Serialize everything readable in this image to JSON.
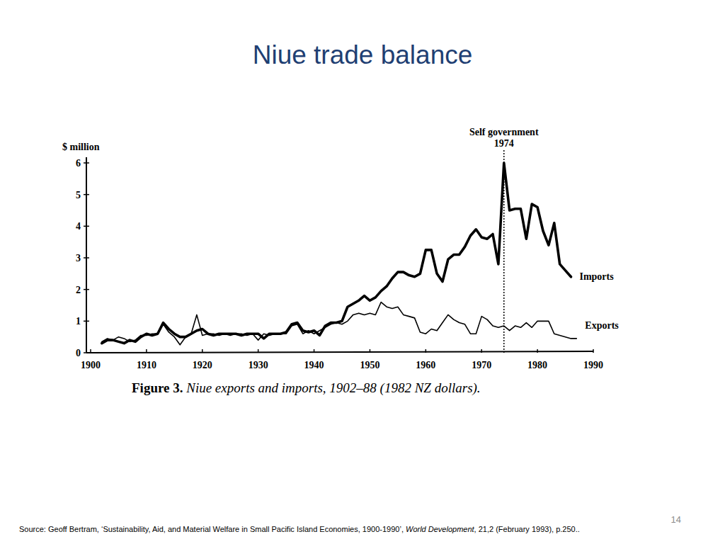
{
  "slide": {
    "title": "Niue trade balance",
    "caption_parts": [
      "Figure 3.",
      "Niue exports and imports, 1902–88 (1982 NZ dollars)."
    ],
    "source_parts": [
      "Source: Geoff Bertram, ‘Sustainability, Aid, and Material Welfare in Small Pacific Island Economies, 1900-1990’, ",
      "World Development",
      ", 21,2 (February 1993), p.250.."
    ],
    "page_number": "14"
  },
  "chart_data": {
    "type": "line",
    "y_label": "$ million",
    "annotations": [
      {
        "x": 1974,
        "lines": [
          "Self government",
          "1974"
        ],
        "line_style": "dotted"
      }
    ],
    "x": [
      1902,
      1903,
      1904,
      1905,
      1906,
      1907,
      1908,
      1909,
      1910,
      1911,
      1912,
      1913,
      1914,
      1915,
      1916,
      1917,
      1918,
      1919,
      1920,
      1921,
      1922,
      1923,
      1924,
      1925,
      1926,
      1927,
      1928,
      1929,
      1930,
      1931,
      1932,
      1933,
      1934,
      1935,
      1936,
      1937,
      1938,
      1939,
      1940,
      1941,
      1942,
      1943,
      1944,
      1945,
      1946,
      1947,
      1948,
      1949,
      1950,
      1951,
      1952,
      1953,
      1954,
      1955,
      1956,
      1957,
      1958,
      1959,
      1960,
      1961,
      1962,
      1963,
      1964,
      1965,
      1966,
      1967,
      1968,
      1969,
      1970,
      1971,
      1972,
      1973,
      1974,
      1975,
      1976,
      1977,
      1978,
      1979,
      1980,
      1981,
      1982,
      1983,
      1984,
      1985,
      1986,
      1987
    ],
    "series": [
      {
        "name": "Imports",
        "color": "#000000",
        "line_style": "thick",
        "values": [
          0.3,
          0.4,
          0.4,
          0.35,
          0.3,
          0.4,
          0.35,
          0.5,
          0.6,
          0.55,
          0.6,
          0.95,
          0.75,
          0.6,
          0.5,
          0.5,
          0.6,
          0.7,
          0.75,
          0.6,
          0.55,
          0.6,
          0.6,
          0.6,
          0.6,
          0.55,
          0.6,
          0.6,
          0.6,
          0.45,
          0.6,
          0.6,
          0.6,
          0.65,
          0.9,
          0.95,
          0.7,
          0.65,
          0.7,
          0.55,
          0.85,
          0.95,
          0.95,
          1.0,
          1.45,
          1.55,
          1.65,
          1.8,
          1.65,
          1.75,
          1.95,
          2.1,
          2.35,
          2.55,
          2.55,
          2.45,
          2.4,
          2.5,
          3.25,
          3.25,
          2.5,
          2.25,
          2.95,
          3.1,
          3.1,
          3.35,
          3.7,
          3.9,
          3.65,
          3.6,
          3.75,
          2.8,
          6.0,
          4.5,
          4.55,
          4.55,
          3.6,
          4.7,
          4.6,
          3.85,
          3.4,
          4.1,
          2.8,
          2.6,
          2.4,
          null
        ]
      },
      {
        "name": "Exports",
        "color": "#000000",
        "line_style": "thin",
        "values": [
          0.35,
          0.45,
          0.4,
          0.5,
          0.45,
          0.35,
          0.4,
          0.55,
          0.55,
          0.6,
          0.6,
          0.9,
          0.65,
          0.5,
          0.25,
          0.5,
          0.6,
          1.2,
          0.55,
          0.6,
          0.6,
          0.55,
          0.6,
          0.55,
          0.6,
          0.6,
          0.55,
          0.6,
          0.4,
          0.6,
          0.55,
          0.6,
          0.6,
          0.6,
          0.85,
          0.9,
          0.6,
          0.7,
          0.6,
          0.7,
          0.8,
          0.9,
          0.95,
          0.9,
          1.0,
          1.2,
          1.25,
          1.2,
          1.25,
          1.2,
          1.6,
          1.45,
          1.4,
          1.45,
          1.2,
          1.15,
          1.1,
          0.65,
          0.6,
          0.75,
          0.7,
          0.95,
          1.2,
          1.05,
          0.95,
          0.9,
          0.6,
          0.6,
          1.15,
          1.05,
          0.85,
          0.8,
          0.85,
          0.7,
          0.85,
          0.8,
          0.95,
          0.8,
          1.0,
          1.0,
          1.0,
          0.6,
          0.55,
          0.5,
          0.45,
          0.45
        ]
      }
    ],
    "xlim": [
      1900,
      1990
    ],
    "xticks": [
      1900,
      1910,
      1920,
      1930,
      1940,
      1950,
      1960,
      1970,
      1980,
      1990
    ],
    "ylim": [
      0,
      6
    ],
    "yticks": [
      0,
      1,
      2,
      3,
      4,
      5,
      6
    ],
    "grid": false
  }
}
